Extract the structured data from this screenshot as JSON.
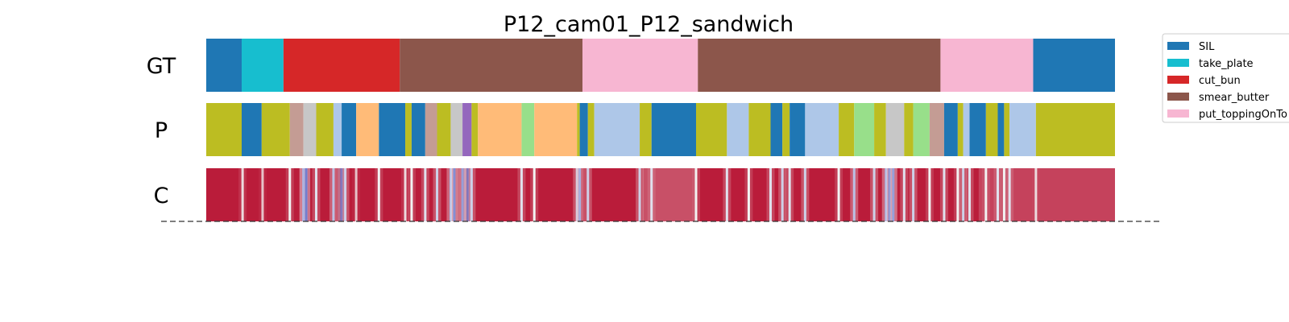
{
  "chart_data": {
    "type": "heatmap",
    "title": "P12_cam01_P12_sandwich",
    "x_range": [
      0,
      1000
    ],
    "rows": [
      {
        "label": "GT",
        "segments": [
          {
            "start": 0,
            "end": 39,
            "class": "SIL"
          },
          {
            "start": 39,
            "end": 85,
            "class": "take_plate"
          },
          {
            "start": 85,
            "end": 213,
            "class": "cut_bun"
          },
          {
            "start": 213,
            "end": 414,
            "class": "smear_butter"
          },
          {
            "start": 414,
            "end": 541,
            "class": "put_toppingOnTop"
          },
          {
            "start": 541,
            "end": 808,
            "class": "smear_butter"
          },
          {
            "start": 808,
            "end": 910,
            "class": "put_toppingOnTop"
          },
          {
            "start": 910,
            "end": 1000,
            "class": "SIL"
          }
        ]
      },
      {
        "label": "P",
        "segments": [
          {
            "start": 0,
            "end": 39,
            "class": "olive"
          },
          {
            "start": 39,
            "end": 61,
            "class": "SIL"
          },
          {
            "start": 61,
            "end": 92,
            "class": "olive"
          },
          {
            "start": 92,
            "end": 107,
            "class": "rosybrown"
          },
          {
            "start": 107,
            "end": 121,
            "class": "lightgray"
          },
          {
            "start": 121,
            "end": 140,
            "class": "olive"
          },
          {
            "start": 140,
            "end": 149,
            "class": "lightblue"
          },
          {
            "start": 149,
            "end": 165,
            "class": "SIL"
          },
          {
            "start": 165,
            "end": 190,
            "class": "peach"
          },
          {
            "start": 190,
            "end": 219,
            "class": "SIL"
          },
          {
            "start": 219,
            "end": 226,
            "class": "olive"
          },
          {
            "start": 226,
            "end": 241,
            "class": "SIL"
          },
          {
            "start": 241,
            "end": 254,
            "class": "rosybrown"
          },
          {
            "start": 254,
            "end": 269,
            "class": "olive"
          },
          {
            "start": 269,
            "end": 282,
            "class": "lightgray"
          },
          {
            "start": 282,
            "end": 292,
            "class": "purple"
          },
          {
            "start": 292,
            "end": 299,
            "class": "olive"
          },
          {
            "start": 299,
            "end": 347,
            "class": "peach"
          },
          {
            "start": 347,
            "end": 361,
            "class": "lightgreen"
          },
          {
            "start": 361,
            "end": 408,
            "class": "peach"
          },
          {
            "start": 408,
            "end": 411,
            "class": "olive"
          },
          {
            "start": 411,
            "end": 420,
            "class": "SIL"
          },
          {
            "start": 420,
            "end": 427,
            "class": "olive"
          },
          {
            "start": 427,
            "end": 477,
            "class": "lightblue"
          },
          {
            "start": 477,
            "end": 490,
            "class": "olive"
          },
          {
            "start": 490,
            "end": 539,
            "class": "SIL"
          },
          {
            "start": 539,
            "end": 573,
            "class": "olive"
          },
          {
            "start": 573,
            "end": 597,
            "class": "lightblue"
          },
          {
            "start": 597,
            "end": 621,
            "class": "olive"
          },
          {
            "start": 621,
            "end": 634,
            "class": "SIL"
          },
          {
            "start": 634,
            "end": 642,
            "class": "olive"
          },
          {
            "start": 642,
            "end": 659,
            "class": "SIL"
          },
          {
            "start": 659,
            "end": 696,
            "class": "lightblue"
          },
          {
            "start": 696,
            "end": 713,
            "class": "olive"
          },
          {
            "start": 713,
            "end": 735,
            "class": "lightgreen"
          },
          {
            "start": 735,
            "end": 748,
            "class": "olive"
          },
          {
            "start": 748,
            "end": 768,
            "class": "lightgray"
          },
          {
            "start": 768,
            "end": 778,
            "class": "olive"
          },
          {
            "start": 778,
            "end": 796,
            "class": "lightgreen"
          },
          {
            "start": 796,
            "end": 812,
            "class": "rosybrown"
          },
          {
            "start": 812,
            "end": 827,
            "class": "SIL"
          },
          {
            "start": 827,
            "end": 833,
            "class": "olive"
          },
          {
            "start": 833,
            "end": 840,
            "class": "lightblue"
          },
          {
            "start": 840,
            "end": 858,
            "class": "SIL"
          },
          {
            "start": 858,
            "end": 871,
            "class": "olive"
          },
          {
            "start": 871,
            "end": 878,
            "class": "SIL"
          },
          {
            "start": 878,
            "end": 884,
            "class": "olive"
          },
          {
            "start": 884,
            "end": 913,
            "class": "lightblue"
          },
          {
            "start": 913,
            "end": 1000,
            "class": "olive"
          }
        ]
      },
      {
        "label": "C",
        "type": "confidence",
        "color_scale": [
          "#3b4cc0",
          "#b40426"
        ],
        "baseline": 0.95,
        "stripes": [
          {
            "x": 40,
            "v": 0.55
          },
          {
            "x": 62,
            "v": 0.6
          },
          {
            "x": 92,
            "v": 0.5
          },
          {
            "x": 107,
            "v": 0.2
          },
          {
            "x": 110,
            "v": 0.15
          },
          {
            "x": 121,
            "v": 0.45
          },
          {
            "x": 140,
            "v": 0.35
          },
          {
            "x": 149,
            "v": 0.1
          },
          {
            "x": 153,
            "v": 0.4
          },
          {
            "x": 165,
            "v": 0.6
          },
          {
            "x": 190,
            "v": 0.5
          },
          {
            "x": 219,
            "v": 0.55
          },
          {
            "x": 226,
            "v": 0.5
          },
          {
            "x": 241,
            "v": 0.45
          },
          {
            "x": 254,
            "v": 0.4
          },
          {
            "x": 269,
            "v": 0.3
          },
          {
            "x": 273,
            "v": 0.2
          },
          {
            "x": 282,
            "v": 0.25
          },
          {
            "x": 288,
            "v": 0.1
          },
          {
            "x": 292,
            "v": 0.4
          },
          {
            "x": 347,
            "v": 0.45
          },
          {
            "x": 361,
            "v": 0.5
          },
          {
            "x": 408,
            "v": 0.4
          },
          {
            "x": 411,
            "v": 0.3
          },
          {
            "x": 420,
            "v": 0.4
          },
          {
            "x": 477,
            "v": 0.4
          },
          {
            "x": 490,
            "v": 0.45
          },
          {
            "x": 539,
            "v": 0.5
          },
          {
            "x": 573,
            "v": 0.45
          },
          {
            "x": 597,
            "v": 0.5
          },
          {
            "x": 621,
            "v": 0.45
          },
          {
            "x": 634,
            "v": 0.4
          },
          {
            "x": 642,
            "v": 0.45
          },
          {
            "x": 659,
            "v": 0.4
          },
          {
            "x": 696,
            "v": 0.5
          },
          {
            "x": 713,
            "v": 0.35
          },
          {
            "x": 735,
            "v": 0.4
          },
          {
            "x": 748,
            "v": 0.3
          },
          {
            "x": 752,
            "v": 0.15
          },
          {
            "x": 756,
            "v": 0.25
          },
          {
            "x": 768,
            "v": 0.45
          },
          {
            "x": 778,
            "v": 0.4
          },
          {
            "x": 796,
            "v": 0.5
          },
          {
            "x": 812,
            "v": 0.45
          },
          {
            "x": 827,
            "v": 0.5
          },
          {
            "x": 833,
            "v": 0.4
          },
          {
            "x": 840,
            "v": 0.45
          },
          {
            "x": 858,
            "v": 0.5
          },
          {
            "x": 871,
            "v": 0.45
          },
          {
            "x": 878,
            "v": 0.5
          },
          {
            "x": 884,
            "v": 0.45
          },
          {
            "x": 913,
            "v": 0.55
          }
        ],
        "soft_bands": [
          {
            "start": 480,
            "end": 540,
            "v": 0.75
          },
          {
            "start": 850,
            "end": 1000,
            "v": 0.8
          }
        ]
      }
    ],
    "classes": {
      "SIL": "#1f77b4",
      "take_plate": "#17becf",
      "cut_bun": "#d62728",
      "smear_butter": "#8c564b",
      "put_toppingOnTop": "#f7b6d2",
      "olive": "#bcbd22",
      "rosybrown": "#c49c94",
      "lightgray": "#c7c7c7",
      "lightblue": "#aec7e8",
      "peach": "#ffbb78",
      "purple": "#9467bd",
      "lightgreen": "#98df8a"
    },
    "legend": {
      "placement": "top-right",
      "entries": [
        {
          "label": "SIL",
          "color": "#1f77b4"
        },
        {
          "label": "take_plate",
          "color": "#17becf"
        },
        {
          "label": "cut_bun",
          "color": "#d62728"
        },
        {
          "label": "smear_butter",
          "color": "#8c564b"
        },
        {
          "label": "put_toppingOnTo",
          "color": "#f7b6d2"
        }
      ]
    },
    "grid": false
  }
}
